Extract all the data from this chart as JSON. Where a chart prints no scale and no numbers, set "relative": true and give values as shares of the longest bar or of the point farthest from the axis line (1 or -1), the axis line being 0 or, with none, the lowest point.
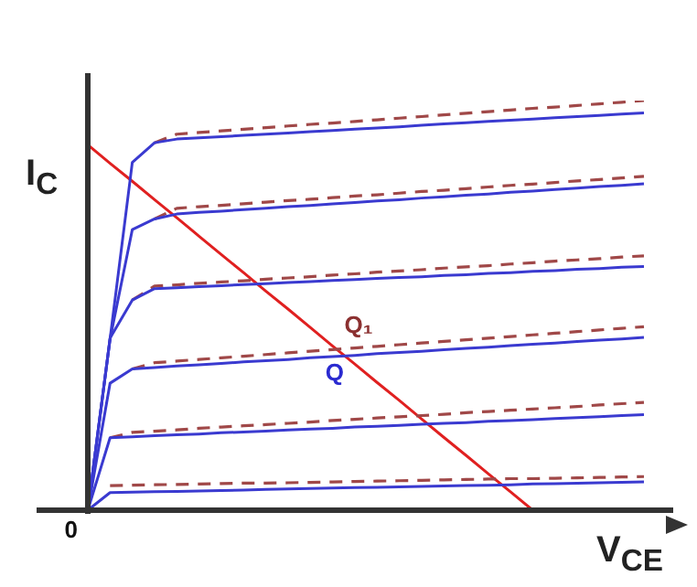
{
  "chart_data": {
    "type": "line",
    "relative": true,
    "xlabel": "V$_{CE}$",
    "ylabel": "I$_{C}$",
    "annotations": [
      "Q₁",
      "Q",
      "0"
    ],
    "legend": false,
    "grid": false,
    "tick_labels": false,
    "marker": "none",
    "categories": [
      null,
      null,
      null,
      null,
      null,
      null,
      null,
      null,
      null,
      null,
      null,
      null,
      null,
      null,
      null,
      null,
      null,
      null,
      null,
      null,
      null,
      null,
      null,
      null,
      null,
      null
    ],
    "series": [
      {
        "color": "#3a3ad0",
        "line_style": "solid",
        "values": [
          0,
          0.418,
          0.849,
          0.897,
          0.906,
          0.909,
          0.912,
          0.915,
          0.918,
          0.921,
          0.924,
          0.927,
          0.93,
          0.933,
          0.936,
          0.94,
          0.943,
          0.946,
          0.949,
          0.952,
          0.955,
          0.958,
          0.961,
          0.964,
          0.967,
          0.97
        ]
      },
      {
        "color": "#3a3ad0",
        "line_style": "solid",
        "values": [
          0,
          0.418,
          0.685,
          0.711,
          0.723,
          0.727,
          0.73,
          0.734,
          0.737,
          0.741,
          0.744,
          0.748,
          0.751,
          0.755,
          0.758,
          0.762,
          0.765,
          0.769,
          0.772,
          0.776,
          0.779,
          0.783,
          0.786,
          0.79,
          0.793,
          0.797
        ]
      },
      {
        "color": "#3a3ad0",
        "line_style": "solid",
        "values": [
          0,
          0.42,
          0.513,
          0.541,
          0.543,
          0.546,
          0.548,
          0.551,
          0.553,
          0.556,
          0.558,
          0.561,
          0.563,
          0.566,
          0.568,
          0.57,
          0.573,
          0.575,
          0.578,
          0.58,
          0.583,
          0.585,
          0.588,
          0.59,
          0.593,
          0.595
        ]
      },
      {
        "color": "#3a3ad0",
        "line_style": "solid",
        "values": [
          0,
          0.31,
          0.345,
          0.348,
          0.352,
          0.355,
          0.358,
          0.362,
          0.365,
          0.368,
          0.372,
          0.375,
          0.378,
          0.382,
          0.385,
          0.388,
          0.392,
          0.395,
          0.398,
          0.402,
          0.405,
          0.408,
          0.412,
          0.415,
          0.418,
          0.422
        ]
      },
      {
        "color": "#3a3ad0",
        "line_style": "solid",
        "values": [
          0,
          0.177,
          0.179,
          0.182,
          0.184,
          0.186,
          0.189,
          0.191,
          0.193,
          0.196,
          0.198,
          0.2,
          0.203,
          0.205,
          0.207,
          0.21,
          0.212,
          0.214,
          0.217,
          0.219,
          0.221,
          0.224,
          0.226,
          0.228,
          0.231,
          0.233
        ]
      },
      {
        "color": "#3a3ad0",
        "line_style": "solid",
        "values": [
          0,
          0.043,
          0.044,
          0.045,
          0.046,
          0.047,
          0.048,
          0.049,
          0.051,
          0.052,
          0.053,
          0.054,
          0.055,
          0.056,
          0.057,
          0.058,
          0.059,
          0.06,
          0.061,
          0.062,
          0.064,
          0.065,
          0.066,
          0.067,
          0.068,
          0.069
        ]
      },
      {
        "color": "#a04848",
        "line_style": "dashed",
        "values": [
          null,
          null,
          null,
          0.897,
          0.918,
          0.922,
          0.926,
          0.93,
          0.934,
          0.938,
          0.942,
          0.945,
          0.949,
          0.953,
          0.957,
          0.961,
          0.965,
          0.969,
          0.973,
          0.977,
          0.981,
          0.984,
          0.988,
          0.992,
          0.996,
          1.0
        ]
      },
      {
        "color": "#a04848",
        "line_style": "dashed",
        "values": [
          null,
          null,
          null,
          0.711,
          0.737,
          0.741,
          0.744,
          0.748,
          0.752,
          0.756,
          0.759,
          0.763,
          0.767,
          0.77,
          0.774,
          0.778,
          0.781,
          0.785,
          0.789,
          0.793,
          0.796,
          0.8,
          0.804,
          0.807,
          0.811,
          0.815
        ]
      },
      {
        "color": "#a04848",
        "line_style": "dashed",
        "values": [
          null,
          null,
          0.513,
          0.547,
          0.55,
          0.554,
          0.557,
          0.56,
          0.564,
          0.567,
          0.57,
          0.574,
          0.577,
          0.581,
          0.584,
          0.587,
          0.591,
          0.594,
          0.597,
          0.601,
          0.604,
          0.608,
          0.611,
          0.614,
          0.618,
          0.621
        ]
      },
      {
        "color": "#a04848",
        "line_style": "dashed",
        "values": [
          null,
          null,
          0.345,
          0.36,
          0.364,
          0.368,
          0.372,
          0.376,
          0.38,
          0.384,
          0.388,
          0.392,
          0.396,
          0.4,
          0.404,
          0.408,
          0.412,
          0.416,
          0.42,
          0.424,
          0.428,
          0.432,
          0.436,
          0.44,
          0.444,
          0.448
        ]
      },
      {
        "color": "#a04848",
        "line_style": "dashed",
        "values": [
          null,
          0.177,
          0.19,
          0.193,
          0.196,
          0.2,
          0.203,
          0.206,
          0.209,
          0.212,
          0.215,
          0.219,
          0.222,
          0.225,
          0.228,
          0.231,
          0.234,
          0.238,
          0.241,
          0.244,
          0.247,
          0.25,
          0.253,
          0.257,
          0.26,
          0.263
        ]
      },
      {
        "color": "#a04848",
        "line_style": "dashed",
        "values": [
          null,
          0.06,
          0.061,
          0.062,
          0.063,
          0.064,
          0.065,
          0.066,
          0.066,
          0.067,
          0.068,
          0.069,
          0.07,
          0.071,
          0.072,
          0.073,
          0.074,
          0.075,
          0.076,
          0.077,
          0.077,
          0.078,
          0.079,
          0.08,
          0.081,
          0.082
        ]
      },
      {
        "color": "#e02020",
        "line_style": "solid",
        "values": [
          0.892,
          0.847,
          0.803,
          0.758,
          0.714,
          0.669,
          0.624,
          0.58,
          0.535,
          0.491,
          0.446,
          0.401,
          0.357,
          0.312,
          0.268,
          0.223,
          0.178,
          0.134,
          0.089,
          0.045,
          0.0,
          null,
          null,
          null,
          null,
          null
        ]
      }
    ]
  }
}
